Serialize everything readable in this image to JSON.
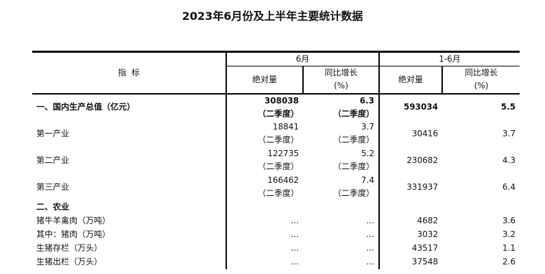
{
  "title": "2023年6月份及上半年主要统计数据",
  "header": {
    "indicator": "指  标",
    "june": "6月",
    "ytd": "1-6月",
    "abs": "绝对量",
    "yoy": "同比增长",
    "pct": "(%)"
  },
  "rows": [
    {
      "name": "一、国内生产总值（亿元）",
      "m_abs": "308038",
      "m_note": "（二季度）",
      "m_yoy": "6.3",
      "m_yoy_note": "（二季度）",
      "y_abs": "593034",
      "y_yoy": "5.5",
      "bold": true
    },
    {
      "name": "第一产业",
      "m_abs": "18841",
      "m_note": "（二季度）",
      "m_yoy": "3.7",
      "m_yoy_note": "（二季度）",
      "y_abs": "30416",
      "y_yoy": "3.7"
    },
    {
      "name": "第二产业",
      "m_abs": "122735",
      "m_note": "（二季度）",
      "m_yoy": "5.2",
      "m_yoy_note": "（二季度）",
      "y_abs": "230682",
      "y_yoy": "4.3"
    },
    {
      "name": "第三产业",
      "m_abs": "166462",
      "m_note": "（二季度）",
      "m_yoy": "7.4",
      "m_yoy_note": "（二季度）",
      "y_abs": "331937",
      "y_yoy": "6.4"
    }
  ],
  "section2": "二、农业",
  "rows2": [
    {
      "name": "猪牛羊禽肉（万吨）",
      "m_abs": "…",
      "m_yoy": "…",
      "y_abs": "4682",
      "y_yoy": "3.6"
    },
    {
      "name": "其中：猪肉（万吨）",
      "m_abs": "…",
      "m_yoy": "…",
      "y_abs": "3032",
      "y_yoy": "3.2"
    },
    {
      "name": "生猪存栏（万头）",
      "m_abs": "…",
      "m_yoy": "…",
      "y_abs": "43517",
      "y_yoy": "1.1"
    },
    {
      "name": "生猪出栏（万头）",
      "m_abs": "…",
      "m_yoy": "…",
      "y_abs": "37548",
      "y_yoy": "2.6"
    }
  ]
}
